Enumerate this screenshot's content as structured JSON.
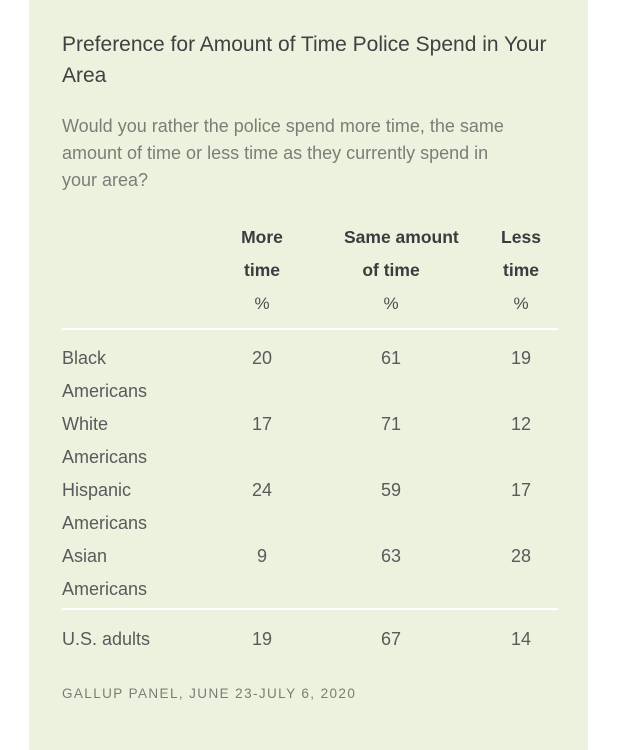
{
  "chart_data": {
    "type": "table",
    "title": "Preference for Amount of Time Police Spend in Your Area",
    "subtitle": "Would you rather the police spend more time, the same amount of time or less time as they currently spend in your area?",
    "columns": [
      "More time",
      "Same amount of time",
      "Less time"
    ],
    "unit": "%",
    "rows": [
      {
        "group": "Black Americans",
        "values": [
          20,
          61,
          19
        ]
      },
      {
        "group": "White Americans",
        "values": [
          17,
          71,
          12
        ]
      },
      {
        "group": "Hispanic Americans",
        "values": [
          24,
          59,
          17
        ]
      },
      {
        "group": "Asian Americans",
        "values": [
          9,
          63,
          28
        ]
      },
      {
        "group": "U.S. adults",
        "values": [
          19,
          67,
          14
        ]
      }
    ],
    "source": "GALLUP PANEL, JUNE 23-JULY 6, 2020",
    "layout": {
      "grid": "off",
      "legend": "none",
      "card_background": "#ECF2DE",
      "divider_color": "#FFFFFF",
      "title_color": "#3F4142",
      "subtitle_color": "#7B7E76",
      "header_color": "#3A3C3E",
      "body_color": "#595A5C",
      "footer_color": "#7A7D75"
    }
  },
  "table": {
    "headers": [
      {
        "line1": "More",
        "line2": "time"
      },
      {
        "line1": "Same amount",
        "line2": "of time"
      },
      {
        "line1": "Less",
        "line2": "time"
      }
    ],
    "percent_symbol": "%",
    "row_labels": [
      {
        "line1": "Black",
        "line2": "Americans"
      },
      {
        "line1": "White",
        "line2": "Americans"
      },
      {
        "line1": "Hispanic",
        "line2": "Americans"
      },
      {
        "line1": "Asian",
        "line2": "Americans"
      }
    ]
  }
}
